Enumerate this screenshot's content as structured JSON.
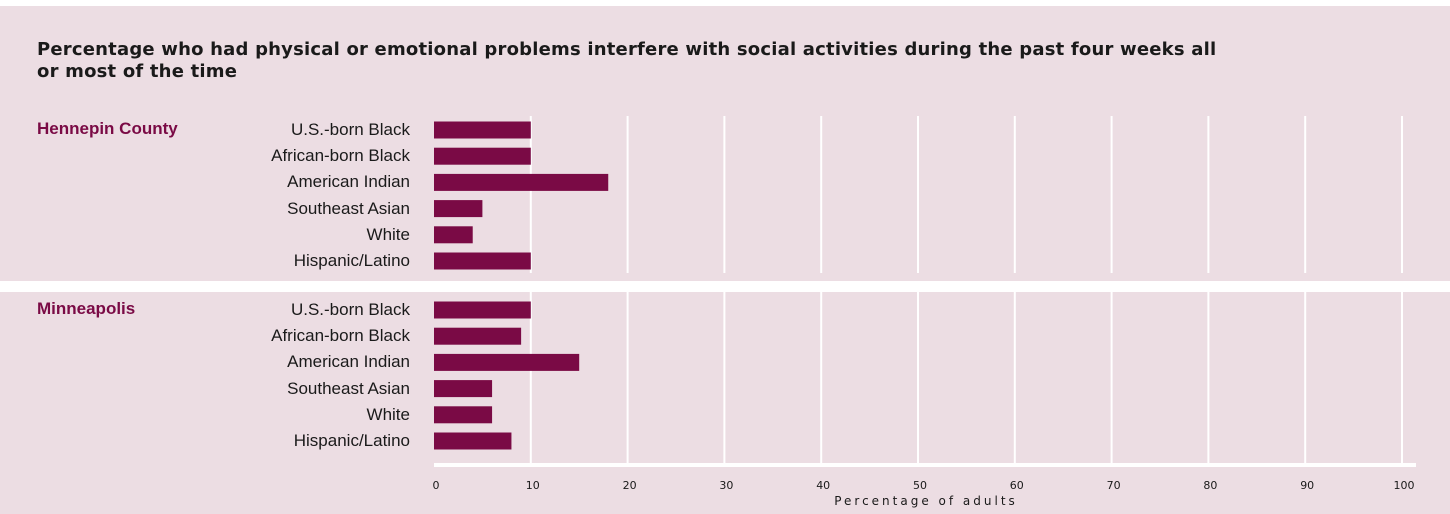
{
  "chart_data": {
    "type": "bar",
    "orientation": "horizontal",
    "title": "Percentage who had physical or emotional problems interfere with social activities during the past four weeks all or most of the time",
    "xlabel": "Percentage of adults",
    "xlim": [
      0,
      100
    ],
    "xticks": [
      0,
      10,
      20,
      30,
      40,
      50,
      60,
      70,
      80,
      90,
      100
    ],
    "grid": true,
    "categories": [
      "U.S.-born Black",
      "African-born Black",
      "American Indian",
      "Southeast Asian",
      "White",
      "Hispanic/Latino"
    ],
    "groups": [
      {
        "name": "Hennepin County",
        "values": [
          10,
          10,
          18,
          5,
          4,
          10
        ]
      },
      {
        "name": "Minneapolis",
        "values": [
          10,
          9,
          15,
          6,
          6,
          8
        ]
      }
    ],
    "colors": {
      "bar": "#7a0a45",
      "panel_background": "#ecdde3",
      "group_label": "#7a0a45",
      "gridline": "#ffffff"
    }
  }
}
